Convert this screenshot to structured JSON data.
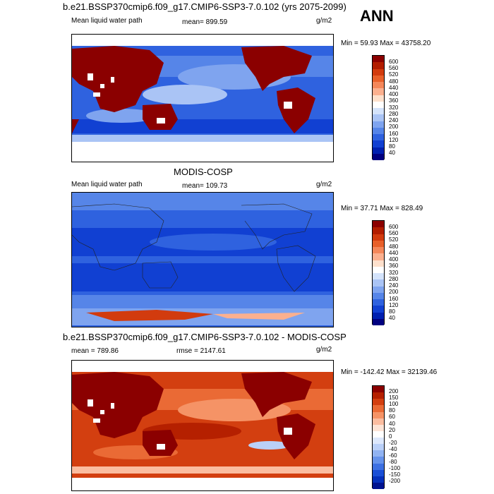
{
  "top_panel": {
    "title": "b.e21.BSSP370cmip6.f09_g17.CMIP6-SSP3-7.0.102 (yrs 2075-2099)",
    "season": "ANN",
    "left_label": "Mean liquid water path",
    "mean_label": "mean= 899.59",
    "units": "g/m2",
    "minmax": "Min =  59.93 Max = 43758.20",
    "colorbar_labels": [
      "600",
      "560",
      "520",
      "480",
      "440",
      "400",
      "360",
      "320",
      "280",
      "240",
      "200",
      "160",
      "120",
      "80",
      "40"
    ]
  },
  "middle_panel": {
    "title": "MODIS-COSP",
    "left_label": "Mean liquid water path",
    "mean_label": "mean= 109.73",
    "units": "g/m2",
    "minmax": "Min =  37.71 Max = 828.49",
    "colorbar_labels": [
      "600",
      "560",
      "520",
      "480",
      "440",
      "400",
      "360",
      "320",
      "280",
      "240",
      "200",
      "160",
      "120",
      "80",
      "40"
    ]
  },
  "bottom_panel": {
    "title": "b.e21.BSSP370cmip6.f09_g17.CMIP6-SSP3-7.0.102 - MODIS-COSP",
    "mean_label": "mean = 789.86",
    "rmse_label": "rmse = 2147.61",
    "units": "g/m2",
    "minmax": "Min = -142.42 Max = 32139.46",
    "colorbar_labels": [
      "200",
      "150",
      "100",
      "80",
      "60",
      "40",
      "20",
      "0",
      "-20",
      "-40",
      "-60",
      "-80",
      "-100",
      "-150",
      "-200"
    ]
  },
  "colors": {
    "seq_scale": [
      "#8b0000",
      "#b21d00",
      "#d23b0e",
      "#e8602a",
      "#f4875a",
      "#fbb08f",
      "#fde0cc",
      "#ffffff",
      "#d4e3fb",
      "#aac4f5",
      "#7fa4ef",
      "#5685e8",
      "#2f62df",
      "#1140d2",
      "#0020b0",
      "#000080"
    ],
    "div_scale": [
      "#8b0000",
      "#b52000",
      "#d33f10",
      "#ea6a35",
      "#f59366",
      "#fbbda0",
      "#fde4d6",
      "#ffffff",
      "#dde8fc",
      "#bad0f8",
      "#91b3f2",
      "#6693eb",
      "#3d70e2",
      "#1a4fd6",
      "#0530bb",
      "#00128f"
    ],
    "land_outline": "#222222"
  }
}
